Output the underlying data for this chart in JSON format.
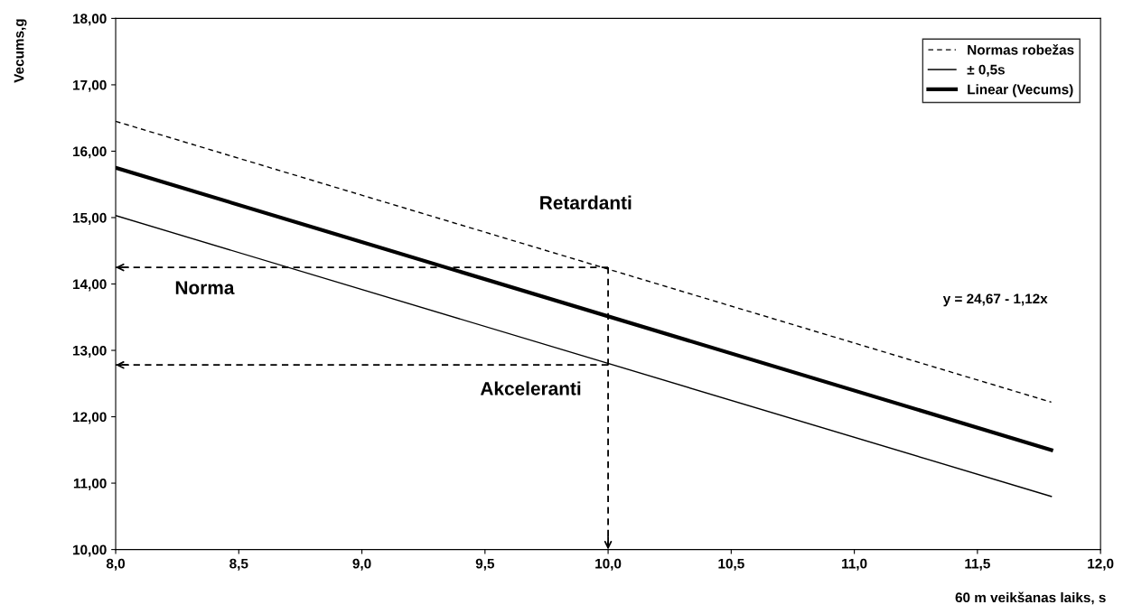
{
  "chart_data": {
    "type": "line",
    "xlabel": "60 m veikšanas laiks, s",
    "ylabel": "Vecums,g",
    "xlim": [
      8,
      12
    ],
    "ylim": [
      10,
      18
    ],
    "xticks": [
      {
        "value": 8,
        "label": "8,0"
      },
      {
        "value": 8.5,
        "label": "8,5"
      },
      {
        "value": 9,
        "label": "9,0"
      },
      {
        "value": 9.5,
        "label": "9,5"
      },
      {
        "value": 10,
        "label": "10,0"
      },
      {
        "value": 10.5,
        "label": "10,5"
      },
      {
        "value": 11,
        "label": "11,0"
      },
      {
        "value": 11.5,
        "label": "11,5"
      },
      {
        "value": 12,
        "label": "12,0"
      }
    ],
    "yticks": [
      {
        "value": 10,
        "label": "10,00"
      },
      {
        "value": 11,
        "label": "11,00"
      },
      {
        "value": 12,
        "label": "12,00"
      },
      {
        "value": 13,
        "label": "13,00"
      },
      {
        "value": 14,
        "label": "14,00"
      },
      {
        "value": 15,
        "label": "15,00"
      },
      {
        "value": 16,
        "label": "16,00"
      },
      {
        "value": 17,
        "label": "17,00"
      },
      {
        "value": 18,
        "label": "18,00"
      }
    ],
    "series": [
      {
        "name": "Normas robežas",
        "color": "#000000",
        "x": [
          8,
          11.8
        ],
        "values": [
          16.45,
          12.22
        ],
        "line_style": "dashed"
      },
      {
        "name": "± 0,5s",
        "color": "#000000",
        "x": [
          8,
          11.8
        ],
        "values": [
          15.03,
          10.8
        ],
        "line_style": "solid"
      },
      {
        "name": "Linear (Vecums)",
        "color": "#000000",
        "x": [
          8,
          11.8
        ],
        "values": [
          15.75,
          11.5
        ],
        "line_style": "solid"
      },
      {
        "color": "#000000",
        "x": [
          10,
          8
        ],
        "values": [
          14.25,
          14.25
        ],
        "line_style": "dashed",
        "marker": "none"
      },
      {
        "color": "#000000",
        "x": [
          10,
          8
        ],
        "values": [
          12.78,
          12.78
        ],
        "line_style": "dashed",
        "marker": "none"
      },
      {
        "color": "#000000",
        "x": [
          10,
          10
        ],
        "values": [
          14.25,
          10
        ],
        "line_style": "dashed",
        "marker": "none"
      }
    ],
    "annotations": [
      "Retardanti",
      "Norma",
      "Akceleranti",
      "y = 24,67 - 1,12x"
    ],
    "legend": "top right",
    "grid": false
  }
}
